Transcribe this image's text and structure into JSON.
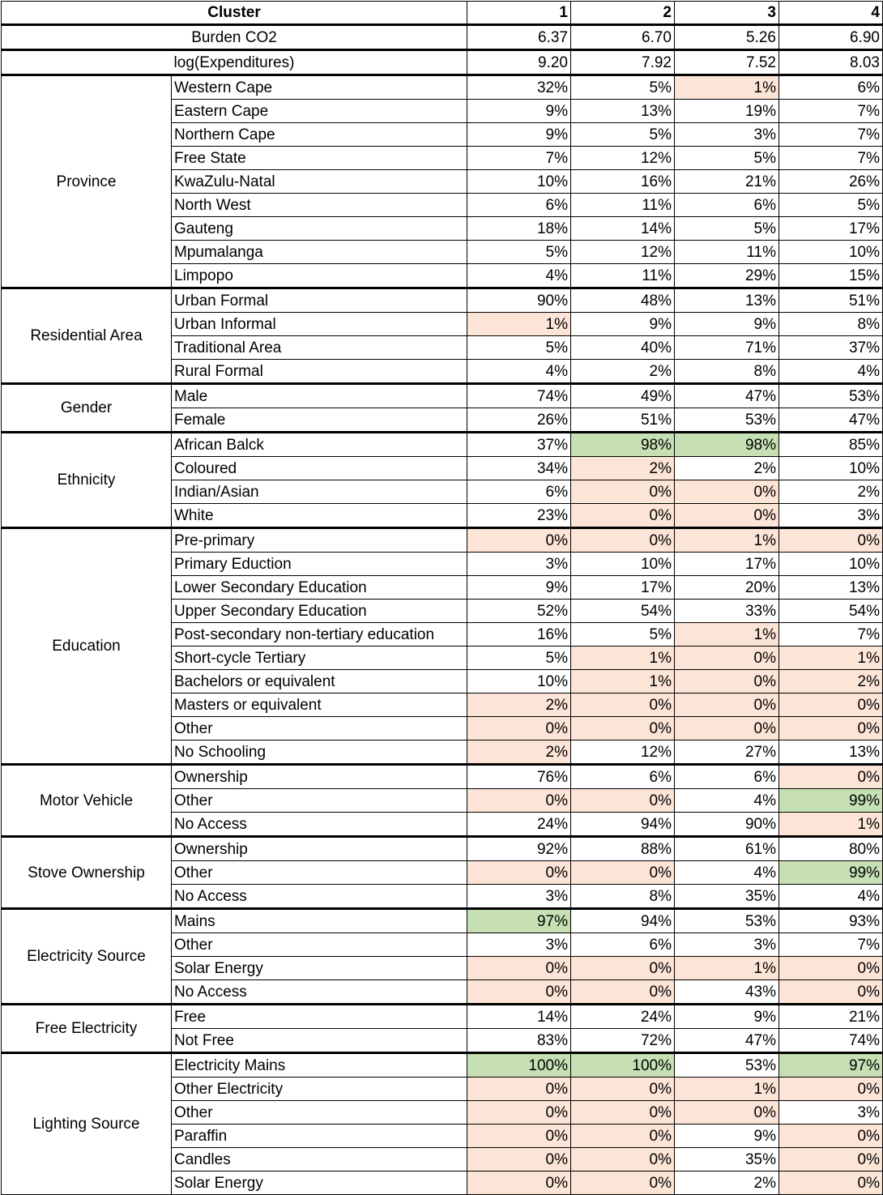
{
  "colors": {
    "low": "#fce4d6",
    "high": "#c6e0b4"
  },
  "header": {
    "label": "Cluster",
    "clusters": [
      "1",
      "2",
      "3",
      "4"
    ]
  },
  "top_rows": [
    {
      "label": "Burden CO2",
      "values": [
        "6.37",
        "6.70",
        "5.26",
        "6.90"
      ],
      "hl": [
        "",
        "",
        "",
        ""
      ]
    },
    {
      "label": "log(Expenditures)",
      "values": [
        "9.20",
        "7.92",
        "7.52",
        "8.03"
      ],
      "hl": [
        "",
        "",
        "",
        ""
      ]
    }
  ],
  "groups": [
    {
      "name": "Province",
      "rows": [
        {
          "label": "Western Cape",
          "values": [
            "32%",
            "5%",
            "1%",
            "6%"
          ],
          "hl": [
            "",
            "",
            "r",
            ""
          ]
        },
        {
          "label": "Eastern Cape",
          "values": [
            "9%",
            "13%",
            "19%",
            "7%"
          ],
          "hl": [
            "",
            "",
            "",
            ""
          ]
        },
        {
          "label": "Northern Cape",
          "values": [
            "9%",
            "5%",
            "3%",
            "7%"
          ],
          "hl": [
            "",
            "",
            "",
            ""
          ]
        },
        {
          "label": "Free State",
          "values": [
            "7%",
            "12%",
            "5%",
            "7%"
          ],
          "hl": [
            "",
            "",
            "",
            ""
          ]
        },
        {
          "label": "KwaZulu-Natal",
          "values": [
            "10%",
            "16%",
            "21%",
            "26%"
          ],
          "hl": [
            "",
            "",
            "",
            ""
          ]
        },
        {
          "label": "North West",
          "values": [
            "6%",
            "11%",
            "6%",
            "5%"
          ],
          "hl": [
            "",
            "",
            "",
            ""
          ]
        },
        {
          "label": "Gauteng",
          "values": [
            "18%",
            "14%",
            "5%",
            "17%"
          ],
          "hl": [
            "",
            "",
            "",
            ""
          ]
        },
        {
          "label": "Mpumalanga",
          "values": [
            "5%",
            "12%",
            "11%",
            "10%"
          ],
          "hl": [
            "",
            "",
            "",
            ""
          ]
        },
        {
          "label": "Limpopo",
          "values": [
            "4%",
            "11%",
            "29%",
            "15%"
          ],
          "hl": [
            "",
            "",
            "",
            ""
          ]
        }
      ]
    },
    {
      "name": "Residential Area",
      "rows": [
        {
          "label": "Urban Formal",
          "values": [
            "90%",
            "48%",
            "13%",
            "51%"
          ],
          "hl": [
            "",
            "",
            "",
            ""
          ]
        },
        {
          "label": "Urban Informal",
          "values": [
            "1%",
            "9%",
            "9%",
            "8%"
          ],
          "hl": [
            "r",
            "",
            "",
            ""
          ]
        },
        {
          "label": "Traditional Area",
          "values": [
            "5%",
            "40%",
            "71%",
            "37%"
          ],
          "hl": [
            "",
            "",
            "",
            ""
          ]
        },
        {
          "label": "Rural Formal",
          "values": [
            "4%",
            "2%",
            "8%",
            "4%"
          ],
          "hl": [
            "",
            "",
            "",
            ""
          ]
        }
      ]
    },
    {
      "name": "Gender",
      "rows": [
        {
          "label": "Male",
          "values": [
            "74%",
            "49%",
            "47%",
            "53%"
          ],
          "hl": [
            "",
            "",
            "",
            ""
          ]
        },
        {
          "label": "Female",
          "values": [
            "26%",
            "51%",
            "53%",
            "47%"
          ],
          "hl": [
            "",
            "",
            "",
            ""
          ]
        }
      ]
    },
    {
      "name": "Ethnicity",
      "rows": [
        {
          "label": "African Balck",
          "values": [
            "37%",
            "98%",
            "98%",
            "85%"
          ],
          "hl": [
            "",
            "g",
            "g",
            ""
          ]
        },
        {
          "label": "Coloured",
          "values": [
            "34%",
            "2%",
            "2%",
            "10%"
          ],
          "hl": [
            "",
            "r",
            "",
            ""
          ]
        },
        {
          "label": "Indian/Asian",
          "values": [
            "6%",
            "0%",
            "0%",
            "2%"
          ],
          "hl": [
            "",
            "r",
            "r",
            ""
          ]
        },
        {
          "label": "White",
          "values": [
            "23%",
            "0%",
            "0%",
            "3%"
          ],
          "hl": [
            "",
            "r",
            "r",
            ""
          ]
        }
      ]
    },
    {
      "name": "Education",
      "rows": [
        {
          "label": "Pre-primary",
          "values": [
            "0%",
            "0%",
            "1%",
            "0%"
          ],
          "hl": [
            "r",
            "r",
            "r",
            "r"
          ]
        },
        {
          "label": "Primary Eduction",
          "values": [
            "3%",
            "10%",
            "17%",
            "10%"
          ],
          "hl": [
            "",
            "",
            "",
            ""
          ]
        },
        {
          "label": "Lower Secondary Education",
          "values": [
            "9%",
            "17%",
            "20%",
            "13%"
          ],
          "hl": [
            "",
            "",
            "",
            ""
          ]
        },
        {
          "label": "Upper Secondary Education",
          "values": [
            "52%",
            "54%",
            "33%",
            "54%"
          ],
          "hl": [
            "",
            "",
            "",
            ""
          ]
        },
        {
          "label": "Post-secondary non-tertiary education",
          "values": [
            "16%",
            "5%",
            "1%",
            "7%"
          ],
          "hl": [
            "",
            "",
            "r",
            ""
          ]
        },
        {
          "label": "Short-cycle Tertiary",
          "values": [
            "5%",
            "1%",
            "0%",
            "1%"
          ],
          "hl": [
            "",
            "r",
            "r",
            "r"
          ]
        },
        {
          "label": "Bachelors or equivalent",
          "values": [
            "10%",
            "1%",
            "0%",
            "2%"
          ],
          "hl": [
            "",
            "r",
            "r",
            "r"
          ]
        },
        {
          "label": "Masters or equivalent",
          "values": [
            "2%",
            "0%",
            "0%",
            "0%"
          ],
          "hl": [
            "r",
            "r",
            "r",
            "r"
          ]
        },
        {
          "label": "Other",
          "values": [
            "0%",
            "0%",
            "0%",
            "0%"
          ],
          "hl": [
            "r",
            "r",
            "r",
            "r"
          ]
        },
        {
          "label": "No Schooling",
          "values": [
            "2%",
            "12%",
            "27%",
            "13%"
          ],
          "hl": [
            "r",
            "",
            "",
            ""
          ]
        }
      ]
    },
    {
      "name": "Motor Vehicle",
      "rows": [
        {
          "label": "Ownership",
          "values": [
            "76%",
            "6%",
            "6%",
            "0%"
          ],
          "hl": [
            "",
            "",
            "",
            "r"
          ]
        },
        {
          "label": "Other",
          "values": [
            "0%",
            "0%",
            "4%",
            "99%"
          ],
          "hl": [
            "r",
            "r",
            "",
            "g"
          ]
        },
        {
          "label": "No Access",
          "values": [
            "24%",
            "94%",
            "90%",
            "1%"
          ],
          "hl": [
            "",
            "",
            "",
            "r"
          ]
        }
      ]
    },
    {
      "name": "Stove Ownership",
      "rows": [
        {
          "label": "Ownership",
          "values": [
            "92%",
            "88%",
            "61%",
            "80%"
          ],
          "hl": [
            "",
            "",
            "",
            ""
          ]
        },
        {
          "label": "Other",
          "values": [
            "0%",
            "0%",
            "4%",
            "99%"
          ],
          "hl": [
            "r",
            "r",
            "",
            "g"
          ]
        },
        {
          "label": "No Access",
          "values": [
            "3%",
            "8%",
            "35%",
            "4%"
          ],
          "hl": [
            "",
            "",
            "",
            ""
          ]
        }
      ]
    },
    {
      "name": "Electricity Source",
      "rows": [
        {
          "label": "Mains",
          "values": [
            "97%",
            "94%",
            "53%",
            "93%"
          ],
          "hl": [
            "g",
            "",
            "",
            ""
          ]
        },
        {
          "label": "Other",
          "values": [
            "3%",
            "6%",
            "3%",
            "7%"
          ],
          "hl": [
            "",
            "",
            "",
            ""
          ]
        },
        {
          "label": "Solar Energy",
          "values": [
            "0%",
            "0%",
            "1%",
            "0%"
          ],
          "hl": [
            "r",
            "r",
            "r",
            "r"
          ]
        },
        {
          "label": "No Access",
          "values": [
            "0%",
            "0%",
            "43%",
            "0%"
          ],
          "hl": [
            "r",
            "r",
            "",
            "r"
          ]
        }
      ]
    },
    {
      "name": "Free Electricity",
      "rows": [
        {
          "label": "Free",
          "values": [
            "14%",
            "24%",
            "9%",
            "21%"
          ],
          "hl": [
            "",
            "",
            "",
            ""
          ]
        },
        {
          "label": "Not Free",
          "values": [
            "83%",
            "72%",
            "47%",
            "74%"
          ],
          "hl": [
            "",
            "",
            "",
            ""
          ]
        }
      ]
    },
    {
      "name": "Lighting Source",
      "rows": [
        {
          "label": "Electricity Mains",
          "values": [
            "100%",
            "100%",
            "53%",
            "97%"
          ],
          "hl": [
            "g",
            "g",
            "",
            "g"
          ]
        },
        {
          "label": "Other Electricity",
          "values": [
            "0%",
            "0%",
            "1%",
            "0%"
          ],
          "hl": [
            "r",
            "r",
            "r",
            "r"
          ]
        },
        {
          "label": "Other",
          "values": [
            "0%",
            "0%",
            "0%",
            "3%"
          ],
          "hl": [
            "r",
            "r",
            "r",
            ""
          ]
        },
        {
          "label": "Paraffin",
          "values": [
            "0%",
            "0%",
            "9%",
            "0%"
          ],
          "hl": [
            "r",
            "r",
            "",
            "r"
          ]
        },
        {
          "label": "Candles",
          "values": [
            "0%",
            "0%",
            "35%",
            "0%"
          ],
          "hl": [
            "r",
            "r",
            "",
            "r"
          ]
        },
        {
          "label": "Solar Energy",
          "values": [
            "0%",
            "0%",
            "2%",
            "0%"
          ],
          "hl": [
            "r",
            "r",
            "",
            "r"
          ]
        }
      ]
    }
  ]
}
